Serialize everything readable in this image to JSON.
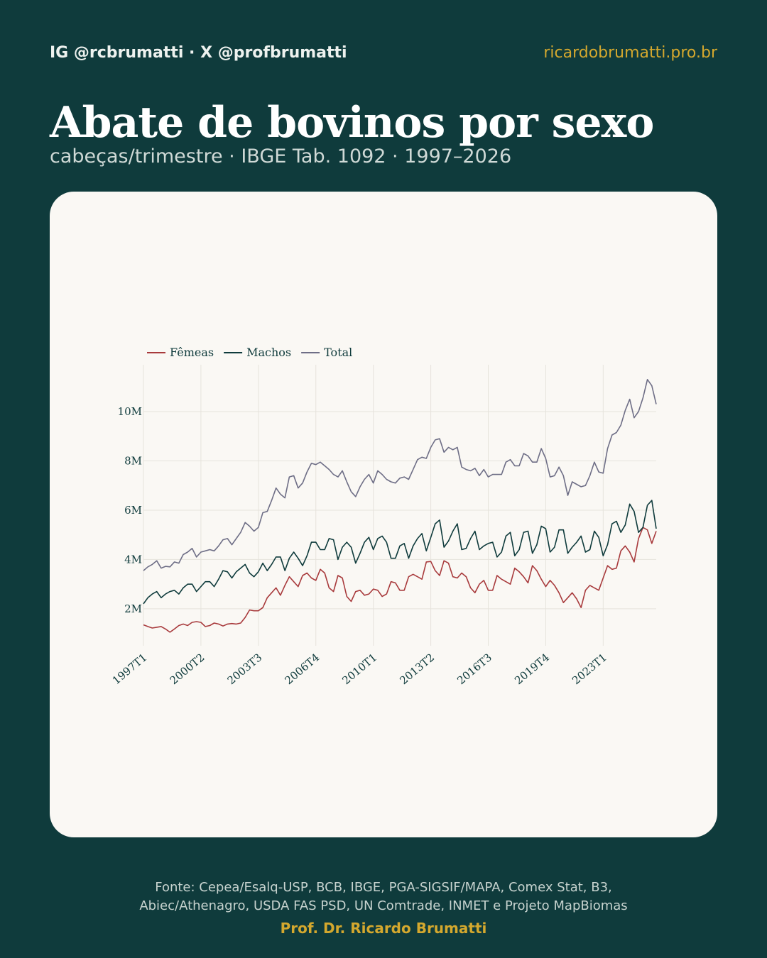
{
  "header": {
    "handle": "IG @rcbrumatti · X @profbrumatti",
    "site": "ricardobrumatti.pro.br",
    "title": "Abate de bovinos por sexo",
    "subtitle": "cabeças/trimestre · IBGE Tab. 1092 · 1997–2026"
  },
  "footer": {
    "source_line1": "Fonte: Cepea/Esalq-USP, BCB, IBGE, PGA-SIGSIF/MAPA, Comex Stat, B3,",
    "source_line2": "Abiec/Athenagro, USDA FAS PSD, UN Comtrade, INMET e Projeto MapBiomas",
    "author": "Prof. Dr. Ricardo Brumatti"
  },
  "colors": {
    "background": "#0f3b3c",
    "accent": "#d4a82e",
    "card": "#faf8f4",
    "femeas": "#a83a3c",
    "machos": "#0f3b3c",
    "total": "#6e6e86"
  },
  "chart_data": {
    "type": "line",
    "title": "",
    "xlabel": "",
    "ylabel": "",
    "x_start": "1997T1",
    "x_end": "2026T1",
    "x_tick_labels": [
      "1997T1",
      "2000T2",
      "2003T3",
      "2006T4",
      "2010T1",
      "2013T2",
      "2016T3",
      "2019T4",
      "2023T1"
    ],
    "y_tick_values": [
      2,
      4,
      6,
      8,
      10
    ],
    "y_tick_labels": [
      "2M",
      "4M",
      "6M",
      "8M",
      "10M"
    ],
    "y_unit": "M",
    "ylim": [
      0.5,
      11.9
    ],
    "grid": true,
    "legend_position": "top-left",
    "series": [
      {
        "name": "Fêmeas",
        "color": "#a83a3c",
        "values": [
          1.35,
          1.28,
          1.22,
          1.25,
          1.28,
          1.18,
          1.05,
          1.18,
          1.32,
          1.38,
          1.32,
          1.45,
          1.48,
          1.45,
          1.28,
          1.32,
          1.42,
          1.38,
          1.3,
          1.38,
          1.4,
          1.38,
          1.42,
          1.65,
          1.95,
          1.92,
          1.92,
          2.05,
          2.45,
          2.65,
          2.85,
          2.55,
          2.95,
          3.3,
          3.1,
          2.9,
          3.35,
          3.45,
          3.25,
          3.15,
          3.6,
          3.45,
          2.85,
          2.7,
          3.35,
          3.25,
          2.5,
          2.3,
          2.7,
          2.75,
          2.55,
          2.6,
          2.8,
          2.75,
          2.5,
          2.6,
          3.1,
          3.05,
          2.75,
          2.75,
          3.3,
          3.4,
          3.3,
          3.2,
          3.9,
          3.92,
          3.55,
          3.35,
          3.95,
          3.85,
          3.3,
          3.25,
          3.45,
          3.3,
          2.85,
          2.65,
          3.0,
          3.15,
          2.75,
          2.75,
          3.35,
          3.2,
          3.1,
          3.0,
          3.65,
          3.5,
          3.3,
          3.05,
          3.75,
          3.55,
          3.2,
          2.9,
          3.15,
          2.95,
          2.65,
          2.25,
          2.45,
          2.65,
          2.4,
          2.05,
          2.75,
          2.95,
          2.85,
          2.75,
          3.25,
          3.75,
          3.6,
          3.65,
          4.35,
          4.55,
          4.3,
          3.9,
          4.85,
          5.3,
          5.2,
          4.65,
          5.15
        ]
      },
      {
        "name": "Machos",
        "color": "#0f3b3c",
        "values": [
          2.2,
          2.45,
          2.6,
          2.7,
          2.45,
          2.6,
          2.7,
          2.75,
          2.6,
          2.85,
          3.0,
          3.0,
          2.7,
          2.9,
          3.1,
          3.1,
          2.9,
          3.2,
          3.55,
          3.5,
          3.25,
          3.5,
          3.65,
          3.8,
          3.45,
          3.3,
          3.5,
          3.85,
          3.55,
          3.8,
          4.1,
          4.1,
          3.55,
          4.05,
          4.3,
          4.05,
          3.75,
          4.15,
          4.7,
          4.7,
          4.4,
          4.4,
          4.85,
          4.8,
          4.0,
          4.5,
          4.7,
          4.5,
          3.85,
          4.25,
          4.7,
          4.9,
          4.4,
          4.85,
          4.95,
          4.7,
          4.05,
          4.05,
          4.55,
          4.65,
          4.05,
          4.55,
          4.85,
          5.05,
          4.35,
          4.9,
          5.45,
          5.6,
          4.5,
          4.75,
          5.15,
          5.45,
          4.4,
          4.45,
          4.85,
          5.15,
          4.4,
          4.55,
          4.65,
          4.7,
          4.1,
          4.3,
          4.95,
          5.1,
          4.15,
          4.4,
          5.1,
          5.15,
          4.25,
          4.6,
          5.35,
          5.25,
          4.3,
          4.5,
          5.2,
          5.2,
          4.25,
          4.5,
          4.7,
          4.95,
          4.3,
          4.4,
          5.15,
          4.9,
          4.15,
          4.6,
          5.45,
          5.55,
          5.1,
          5.4,
          6.25,
          5.95,
          5.1,
          5.3,
          6.2,
          6.4,
          5.25
        ]
      },
      {
        "name": "Total",
        "color": "#6e6e86",
        "values": [
          3.55,
          3.7,
          3.8,
          3.95,
          3.65,
          3.72,
          3.7,
          3.9,
          3.85,
          4.2,
          4.3,
          4.45,
          4.1,
          4.3,
          4.35,
          4.4,
          4.35,
          4.55,
          4.8,
          4.85,
          4.6,
          4.85,
          5.1,
          5.5,
          5.35,
          5.15,
          5.3,
          5.9,
          5.95,
          6.4,
          6.9,
          6.65,
          6.5,
          7.35,
          7.4,
          6.9,
          7.1,
          7.55,
          7.9,
          7.85,
          7.95,
          7.8,
          7.65,
          7.45,
          7.35,
          7.6,
          7.15,
          6.75,
          6.55,
          6.95,
          7.25,
          7.45,
          7.1,
          7.6,
          7.45,
          7.25,
          7.15,
          7.1,
          7.3,
          7.35,
          7.25,
          7.65,
          8.05,
          8.15,
          8.1,
          8.55,
          8.85,
          8.9,
          8.35,
          8.55,
          8.45,
          8.55,
          7.75,
          7.65,
          7.6,
          7.7,
          7.4,
          7.65,
          7.35,
          7.45,
          7.45,
          7.45,
          7.95,
          8.05,
          7.8,
          7.8,
          8.3,
          8.2,
          7.95,
          7.95,
          8.5,
          8.1,
          7.35,
          7.4,
          7.75,
          7.4,
          6.6,
          7.15,
          7.05,
          6.95,
          7.0,
          7.4,
          7.95,
          7.55,
          7.5,
          8.5,
          9.05,
          9.15,
          9.45,
          10.05,
          10.5,
          9.75,
          10.0,
          10.55,
          11.3,
          11.05,
          10.3
        ]
      }
    ]
  }
}
